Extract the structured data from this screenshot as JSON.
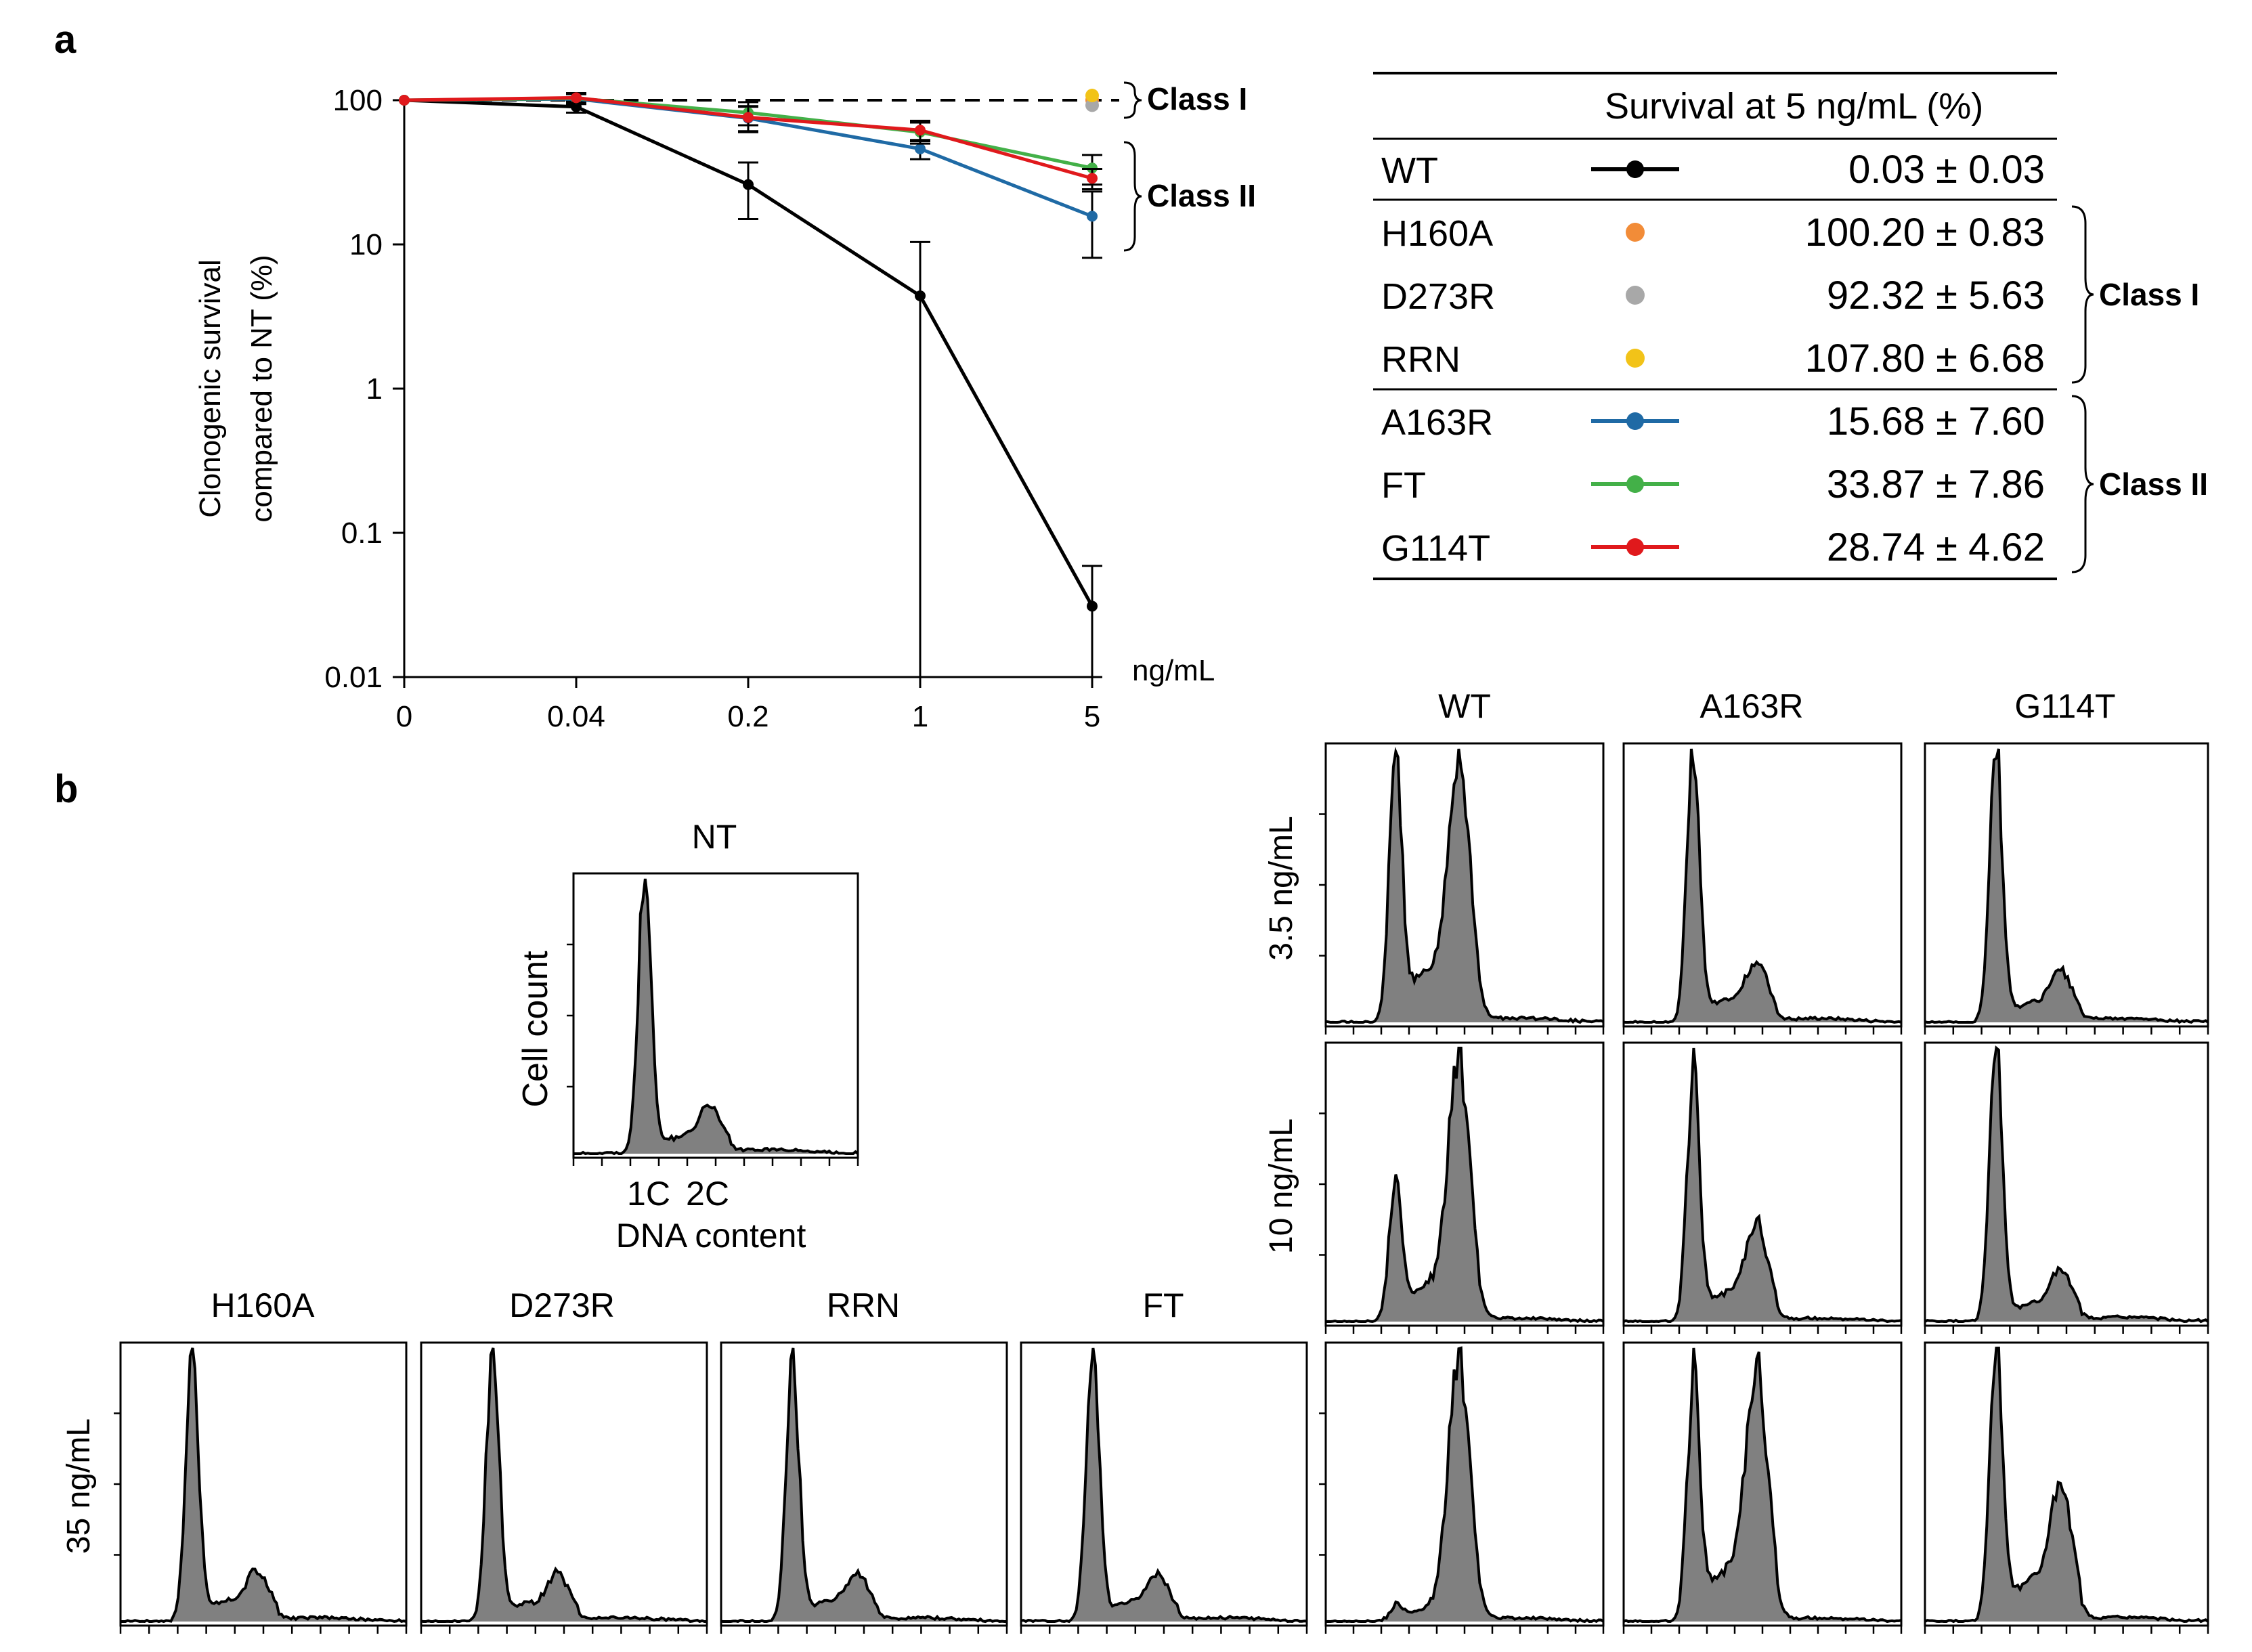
{
  "panel_labels": {
    "a": "a",
    "b": "b"
  },
  "colors": {
    "WT": "#000000",
    "H160A": "#f28c38",
    "D273R": "#a8a8a8",
    "RRN": "#f2c318",
    "A163R": "#1f6aa5",
    "FT": "#43b048",
    "G114T": "#e0191c",
    "hist_fill": "#808080"
  },
  "chart_data": [
    {
      "type": "line",
      "title": "",
      "xlabel": "ng/mL",
      "ylabel": "Clonogenic survival compared to NT (%)",
      "ylabel_lines": [
        "Clonogenic survival",
        "compared to NT (%)"
      ],
      "yscale": "log",
      "ylim": [
        0.01,
        100
      ],
      "yticks": [
        {
          "v": 100,
          "label": "100"
        },
        {
          "v": 10,
          "label": "10"
        },
        {
          "v": 1,
          "label": "1"
        },
        {
          "v": 0.1,
          "label": "0.1"
        },
        {
          "v": 0.01,
          "label": "0.01"
        }
      ],
      "categories": [
        "0",
        "0.04",
        "0.2",
        "1",
        "5"
      ],
      "reference_line": 100,
      "series": [
        {
          "name": "WT",
          "values": [
            100,
            90,
            26,
            4.4,
            0.031
          ],
          "err": [
            0,
            8,
            11,
            6,
            0.028
          ]
        },
        {
          "name": "A163R",
          "values": [
            100,
            102,
            75,
            46,
            15.68
          ],
          "err": [
            0,
            8,
            15,
            7,
            7.6
          ]
        },
        {
          "name": "FT",
          "values": [
            100,
            103,
            82,
            60,
            33.87
          ],
          "err": [
            0,
            8,
            15,
            10,
            7.86
          ]
        },
        {
          "name": "G114T",
          "values": [
            100,
            104,
            76,
            62,
            28.74
          ],
          "err": [
            0,
            8,
            15,
            10,
            4.62
          ]
        }
      ],
      "points_at_5": [
        {
          "name": "H160A",
          "value": 100.2
        },
        {
          "name": "D273R",
          "value": 92.32
        },
        {
          "name": "RRN",
          "value": 107.8
        }
      ],
      "class_braces": [
        {
          "label": "Class I",
          "members": [
            "H160A",
            "D273R",
            "RRN"
          ]
        },
        {
          "label": "Class II",
          "members": [
            "A163R",
            "FT",
            "G114T"
          ]
        }
      ]
    },
    {
      "type": "table",
      "header": "Survival at 5 ng/mL (%)",
      "rows": [
        {
          "name": "WT",
          "marker": "line",
          "value": "0.03 ± 0.03"
        },
        {
          "name": "H160A",
          "marker": "dot",
          "value": "100.20 ± 0.83"
        },
        {
          "name": "D273R",
          "marker": "dot",
          "value": "92.32 ± 5.63"
        },
        {
          "name": "RRN",
          "marker": "dot",
          "value": "107.80 ± 6.68"
        },
        {
          "name": "A163R",
          "marker": "line",
          "value": "15.68 ± 7.60"
        },
        {
          "name": "FT",
          "marker": "line",
          "value": "33.87 ± 7.86"
        },
        {
          "name": "G114T",
          "marker": "line",
          "value": "28.74 ± 4.62"
        }
      ],
      "groups": [
        {
          "label": "Class I",
          "rows": [
            "H160A",
            "D273R",
            "RRN"
          ]
        },
        {
          "label": "Class II",
          "rows": [
            "A163R",
            "FT",
            "G114T"
          ]
        }
      ]
    },
    {
      "type": "histogram",
      "description_free": true,
      "x_axis_title": "DNA content",
      "x_tick_labels": [
        "1C",
        "2C"
      ],
      "y_axis_title": "Cell count",
      "nt_title": "NT",
      "grid_columns": [
        "WT",
        "A163R",
        "G114T"
      ],
      "grid_rows": [
        "3.5 ng/mL",
        "10 ng/mL"
      ],
      "bottom_row_label": "35 ng/mL",
      "bottom_titles": [
        "H160A",
        "D273R",
        "RRN",
        "FT"
      ],
      "profiles": {
        "NT": {
          "g1": 1.0,
          "g2": 0.14,
          "mid": 0.06
        },
        "WT_3.5": {
          "g1": 0.88,
          "g2": 0.85,
          "mid": 0.18
        },
        "A163R_3.5": {
          "g1": 1.0,
          "g2": 0.18,
          "mid": 0.08
        },
        "G114T_3.5": {
          "g1": 1.0,
          "g2": 0.15,
          "mid": 0.07
        },
        "WT_10": {
          "g1": 0.55,
          "g2": 1.0,
          "mid": 0.15
        },
        "A163R_10": {
          "g1": 1.0,
          "g2": 0.35,
          "mid": 0.12
        },
        "G114T_10": {
          "g1": 1.0,
          "g2": 0.14,
          "mid": 0.06
        },
        "H160A_35": {
          "g1": 1.0,
          "g2": 0.15,
          "mid": 0.08
        },
        "D273R_35": {
          "g1": 1.0,
          "g2": 0.14,
          "mid": 0.07
        },
        "RRN_35": {
          "g1": 1.0,
          "g2": 0.14,
          "mid": 0.08
        },
        "FT_35": {
          "g1": 1.0,
          "g2": 0.13,
          "mid": 0.07
        },
        "WT_35": {
          "g1": 0.05,
          "g2": 1.0,
          "mid": 0.05
        },
        "A163R_35": {
          "g1": 0.9,
          "g2": 0.9,
          "mid": 0.2
        },
        "G114T_35": {
          "g1": 1.0,
          "g2": 0.4,
          "mid": 0.15
        }
      }
    }
  ]
}
